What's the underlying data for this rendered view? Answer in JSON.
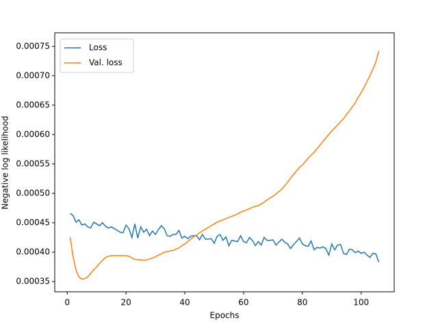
{
  "chart_data": {
    "type": "line",
    "xlabel": "Epochs",
    "ylabel": "Negative log likelihood",
    "x": [
      1,
      2,
      3,
      4,
      5,
      6,
      7,
      8,
      9,
      10,
      11,
      12,
      13,
      14,
      15,
      16,
      17,
      18,
      19,
      20,
      21,
      22,
      23,
      24,
      25,
      26,
      27,
      28,
      29,
      30,
      31,
      32,
      33,
      34,
      35,
      36,
      37,
      38,
      39,
      40,
      41,
      42,
      43,
      44,
      45,
      46,
      47,
      48,
      49,
      50,
      51,
      52,
      53,
      54,
      55,
      56,
      57,
      58,
      59,
      60,
      61,
      62,
      63,
      64,
      65,
      66,
      67,
      68,
      69,
      70,
      71,
      72,
      73,
      74,
      75,
      76,
      77,
      78,
      79,
      80,
      81,
      82,
      83,
      84,
      85,
      86,
      87,
      88,
      89,
      90,
      91,
      92,
      93,
      94,
      95,
      96,
      97,
      98,
      99,
      100,
      101,
      102,
      103,
      104,
      105,
      106
    ],
    "series": [
      {
        "name": "Loss",
        "color": "#1f77b4",
        "values": [
          0.000466,
          0.000462,
          0.000451,
          0.000455,
          0.000446,
          0.000448,
          0.000443,
          0.000441,
          0.000451,
          0.000448,
          0.000445,
          0.00045,
          0.000444,
          0.000441,
          0.000443,
          0.00044,
          0.000437,
          0.000434,
          0.000433,
          0.000446,
          0.00044,
          0.000425,
          0.000448,
          0.000424,
          0.000443,
          0.000434,
          0.000439,
          0.000428,
          0.000436,
          0.00043,
          0.000438,
          0.000445,
          0.00044,
          0.000428,
          0.000427,
          0.00043,
          0.00043,
          0.000437,
          0.000424,
          0.000427,
          0.000423,
          0.000427,
          0.000428,
          0.000428,
          0.000421,
          0.00043,
          0.000422,
          0.000422,
          0.000423,
          0.000415,
          0.000427,
          0.00043,
          0.00042,
          0.000426,
          0.000411,
          0.00042,
          0.000419,
          0.000418,
          0.000428,
          0.000418,
          0.000416,
          0.000425,
          0.00042,
          0.000411,
          0.000418,
          0.000412,
          0.000425,
          0.00042,
          0.00042,
          0.000421,
          0.000412,
          0.000417,
          0.000422,
          0.000417,
          0.000414,
          0.000406,
          0.000413,
          0.000418,
          0.000424,
          0.000414,
          0.000411,
          0.00041,
          0.000419,
          0.000404,
          0.000408,
          0.000407,
          0.000409,
          0.000406,
          0.000395,
          0.000414,
          0.000404,
          0.000412,
          0.000413,
          0.000398,
          0.000396,
          0.000405,
          0.000404,
          0.000399,
          0.000402,
          0.000398,
          0.0004,
          0.000395,
          0.000391,
          0.000398,
          0.000397,
          0.000383
        ]
      },
      {
        "name": "Val. loss",
        "color": "#ff7f0e",
        "values": [
          0.000425,
          0.000392,
          0.000369,
          0.000358,
          0.000354,
          0.000355,
          0.000358,
          0.000364,
          0.00037,
          0.000375,
          0.000381,
          0.000386,
          0.000391,
          0.000393,
          0.000394,
          0.000394,
          0.000394,
          0.000394,
          0.000394,
          0.000394,
          0.000393,
          0.00039,
          0.000388,
          0.000387,
          0.000387,
          0.000386,
          0.000387,
          0.000388,
          0.00039,
          0.000392,
          0.000395,
          0.000397,
          0.0004,
          0.000401,
          0.000402,
          0.000403,
          0.000405,
          0.000407,
          0.000411,
          0.000414,
          0.000418,
          0.000422,
          0.000426,
          0.000429,
          0.000433,
          0.000436,
          0.000439,
          0.000442,
          0.000445,
          0.000448,
          0.000451,
          0.000453,
          0.000455,
          0.000457,
          0.000459,
          0.000461,
          0.000463,
          0.000465,
          0.000468,
          0.00047,
          0.000472,
          0.000474,
          0.000476,
          0.000478,
          0.000479,
          0.000482,
          0.000485,
          0.000489,
          0.000492,
          0.000495,
          0.000499,
          0.000503,
          0.000507,
          0.000513,
          0.000519,
          0.000526,
          0.000532,
          0.000538,
          0.000544,
          0.000548,
          0.000554,
          0.00056,
          0.000565,
          0.00057,
          0.000576,
          0.000582,
          0.000588,
          0.000594,
          0.0006,
          0.000606,
          0.000611,
          0.000616,
          0.000622,
          0.000627,
          0.000634,
          0.00064,
          0.000647,
          0.000654,
          0.000663,
          0.000671,
          0.00068,
          0.00069,
          0.0007,
          0.000711,
          0.000723,
          0.000742
        ]
      }
    ],
    "xlim": [
      -4.25,
      111.25
    ],
    "xticks": [
      0,
      20,
      40,
      60,
      80,
      100
    ],
    "ylim": [
      0.0003326,
      0.000773
    ],
    "yticks": [
      0.00035,
      {
        "value": 0.0004,
        "label": "0.00040"
      },
      0.00045,
      {
        "value": 0.0005,
        "label": "0.00050"
      },
      0.00055,
      {
        "value": 0.0006,
        "label": "0.00060"
      },
      0.00065,
      {
        "value": 0.0007,
        "label": "0.00070"
      },
      0.00075
    ],
    "grid": false,
    "legend": "upper-left"
  }
}
